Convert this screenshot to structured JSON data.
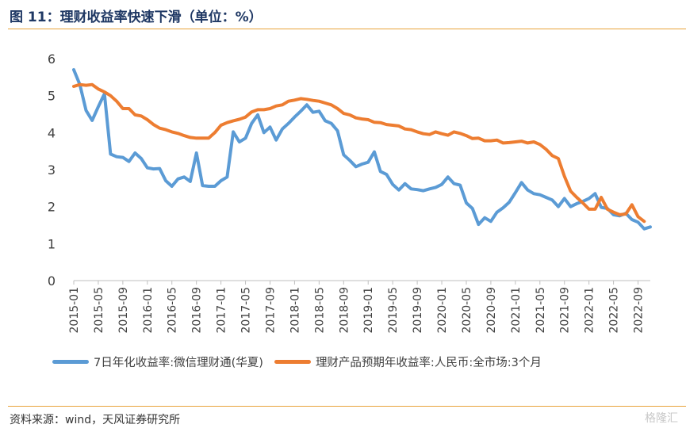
{
  "header": {
    "title": "图 11：理财收益率快速下滑（单位：%）"
  },
  "footer": {
    "source": "资料来源：wind，天风证券研究所",
    "watermark": "格隆汇"
  },
  "colors": {
    "blue": "#5b9bd5",
    "orange": "#ed7d31",
    "accent_rule": "#e8a33a"
  },
  "chart_data": {
    "type": "line",
    "title": "",
    "xlabel": "",
    "ylabel": "",
    "ylim": [
      0,
      6
    ],
    "yticks": [
      0,
      1,
      2,
      3,
      4,
      5,
      6
    ],
    "grid": false,
    "legend_position": "bottom",
    "x_tick_labels": [
      "2015-01",
      "2015-05",
      "2015-09",
      "2016-01",
      "2016-05",
      "2016-09",
      "2017-01",
      "2017-05",
      "2017-09",
      "2018-01",
      "2018-05",
      "2018-09",
      "2019-01",
      "2019-05",
      "2019-09",
      "2020-01",
      "2020-05",
      "2020-09",
      "2021-01",
      "2021-05",
      "2021-09",
      "2022-01",
      "2022-05",
      "2022-09"
    ],
    "series": [
      {
        "name": "7日年化收益率:微信理财通(华夏)",
        "color": "#5b9bd5",
        "start": "2015-01",
        "values": [
          5.7,
          5.3,
          4.6,
          4.33,
          4.7,
          5.05,
          3.42,
          3.35,
          3.33,
          3.22,
          3.45,
          3.3,
          3.05,
          3.02,
          3.03,
          2.7,
          2.55,
          2.75,
          2.8,
          2.68,
          3.45,
          2.57,
          2.55,
          2.55,
          2.7,
          2.8,
          4.02,
          3.75,
          3.85,
          4.25,
          4.48,
          4.0,
          4.15,
          3.8,
          4.1,
          4.25,
          4.42,
          4.58,
          4.75,
          4.55,
          4.58,
          4.32,
          4.25,
          4.05,
          3.4,
          3.25,
          3.08,
          3.15,
          3.2,
          3.48,
          2.95,
          2.87,
          2.6,
          2.45,
          2.62,
          2.48,
          2.46,
          2.43,
          2.48,
          2.52,
          2.6,
          2.8,
          2.62,
          2.58,
          2.1,
          1.95,
          1.52,
          1.7,
          1.6,
          1.85,
          1.97,
          2.12,
          2.38,
          2.65,
          2.45,
          2.35,
          2.32,
          2.25,
          2.18,
          2.0,
          2.22,
          2.0,
          2.08,
          2.14,
          2.22,
          2.35,
          1.98,
          1.95,
          1.78,
          1.75,
          1.82,
          1.65,
          1.58,
          1.4,
          1.45
        ]
      },
      {
        "name": "理财产品预期年收益率:人民币:全市场:3个月",
        "color": "#ed7d31",
        "start": "2015-01",
        "values": [
          5.25,
          5.3,
          5.28,
          5.3,
          5.18,
          5.1,
          5.0,
          4.85,
          4.65,
          4.65,
          4.48,
          4.45,
          4.35,
          4.22,
          4.12,
          4.08,
          4.02,
          3.98,
          3.92,
          3.87,
          3.85,
          3.85,
          3.85,
          4.0,
          4.2,
          4.27,
          4.32,
          4.36,
          4.42,
          4.56,
          4.62,
          4.62,
          4.65,
          4.72,
          4.75,
          4.85,
          4.88,
          4.92,
          4.9,
          4.87,
          4.85,
          4.8,
          4.75,
          4.65,
          4.52,
          4.48,
          4.4,
          4.37,
          4.35,
          4.28,
          4.27,
          4.22,
          4.2,
          4.18,
          4.1,
          4.08,
          4.02,
          3.97,
          3.95,
          4.02,
          3.97,
          3.93,
          4.02,
          3.98,
          3.92,
          3.84,
          3.85,
          3.78,
          3.78,
          3.8,
          3.72,
          3.73,
          3.75,
          3.77,
          3.72,
          3.75,
          3.68,
          3.55,
          3.38,
          3.3,
          2.82,
          2.42,
          2.25,
          2.1,
          1.93,
          1.93,
          2.25,
          1.93,
          1.85,
          1.78,
          1.8,
          2.05,
          1.73,
          1.6
        ]
      }
    ]
  }
}
